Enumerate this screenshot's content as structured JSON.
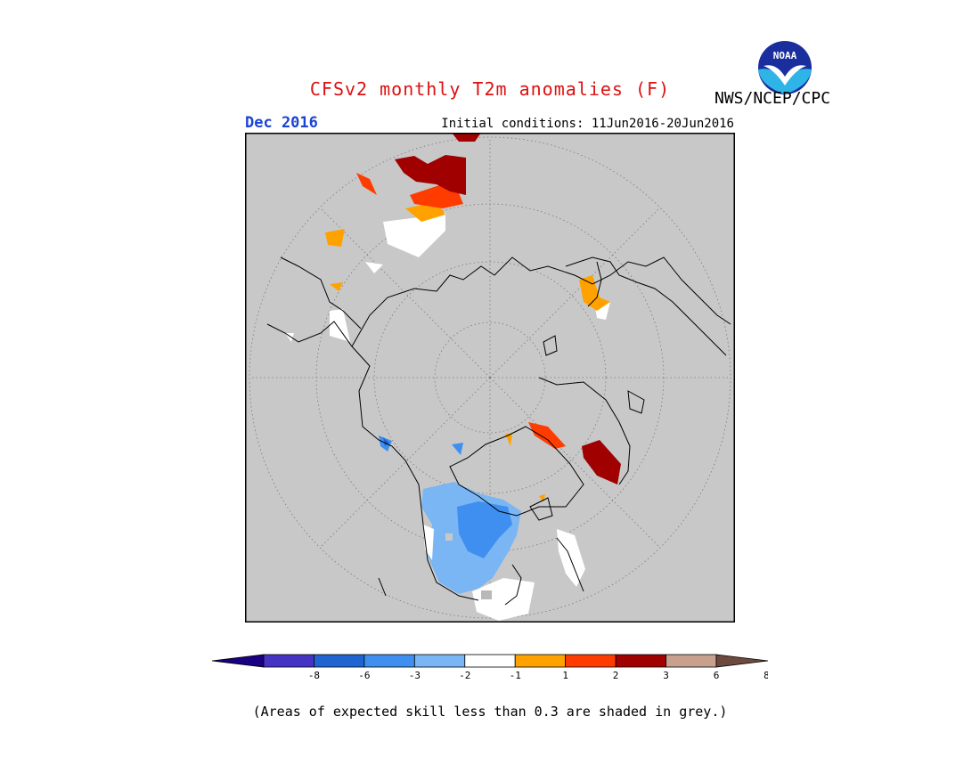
{
  "header": {
    "title": "CFSv2 monthly T2m anomalies (F)",
    "agency": "NWS/NCEP/CPC",
    "logo_text": "NOAA",
    "valid_month": "Dec 2016",
    "initial_conditions": "Initial conditions: 11Jun2016-20Jun2016"
  },
  "colors": {
    "title": "#dd1111",
    "month": "#1b43d6",
    "background_grey": "#c8c8c8",
    "coastline": "#000000"
  },
  "legend": {
    "tick_labels": [
      "-8",
      "-6",
      "-3",
      "-2",
      "-1",
      "1",
      "2",
      "3",
      "6",
      "8"
    ],
    "bins": [
      {
        "color": "#1a0082"
      },
      {
        "color": "#4534c4"
      },
      {
        "color": "#1f64d0"
      },
      {
        "color": "#3e8ff0"
      },
      {
        "color": "#7ab6f4"
      },
      {
        "color": "#ffffff"
      },
      {
        "color": "#ffa200"
      },
      {
        "color": "#ff3c00"
      },
      {
        "color": "#a00000"
      },
      {
        "color": "#c8a08e"
      },
      {
        "color": "#6e4a3e"
      }
    ]
  },
  "footnote": "(Areas of expected skill less than 0.3 are shaded in grey.)"
}
